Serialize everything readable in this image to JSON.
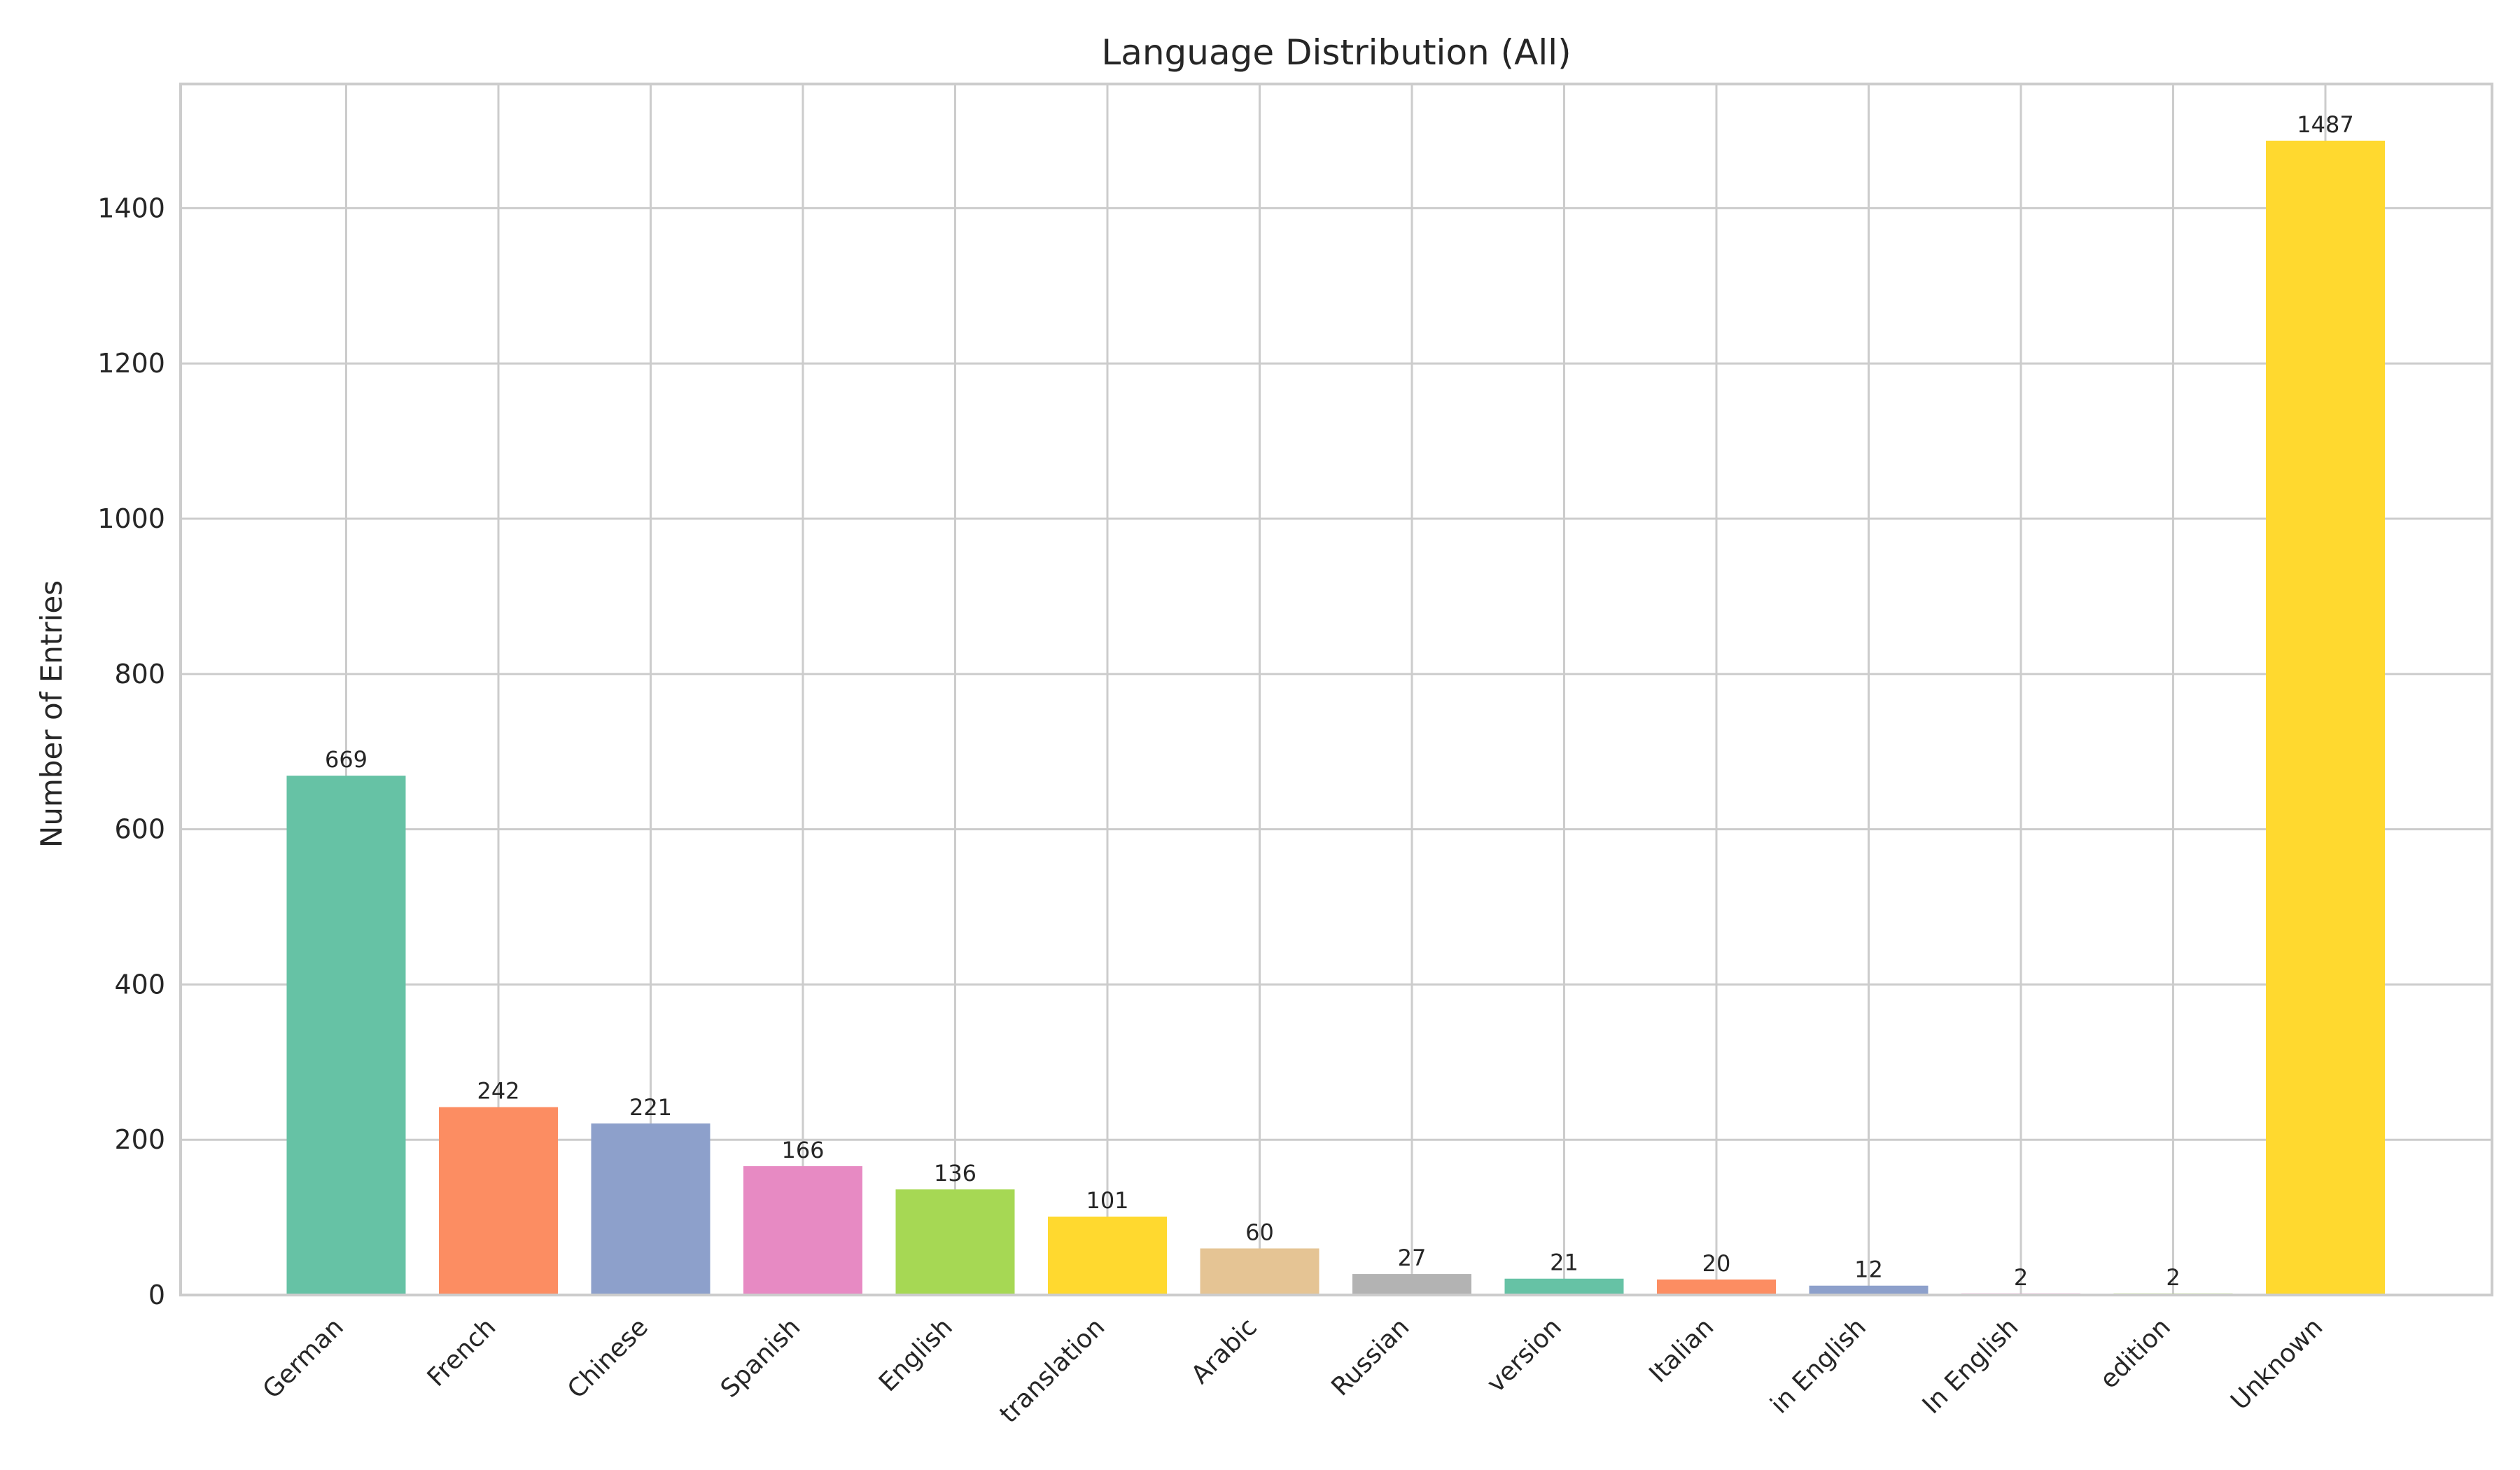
{
  "chart_data": {
    "type": "bar",
    "title": "Language Distribution (All)",
    "xlabel": "",
    "ylabel": "Number of Entries",
    "categories": [
      "German",
      "French",
      "Chinese",
      "Spanish",
      "English",
      "translation",
      "Arabic",
      "Russian",
      "version",
      "Italian",
      "in English",
      "In English",
      "edition",
      "Unknown"
    ],
    "values": [
      669,
      242,
      221,
      166,
      136,
      101,
      60,
      27,
      21,
      20,
      12,
      2,
      2,
      1487
    ],
    "colors": [
      "#66c2a5",
      "#fc8d62",
      "#8da0cb",
      "#e78ac3",
      "#a6d854",
      "#ffd92f",
      "#e5c494",
      "#b3b3b3",
      "#66c2a5",
      "#fc8d62",
      "#8da0cb",
      "#e78ac3",
      "#a6d854",
      "#ffd92f"
    ],
    "ylim": [
      0,
      1560
    ],
    "yticks": [
      0,
      200,
      400,
      600,
      800,
      1000,
      1200,
      1400
    ],
    "grid": true,
    "legend": "none"
  }
}
